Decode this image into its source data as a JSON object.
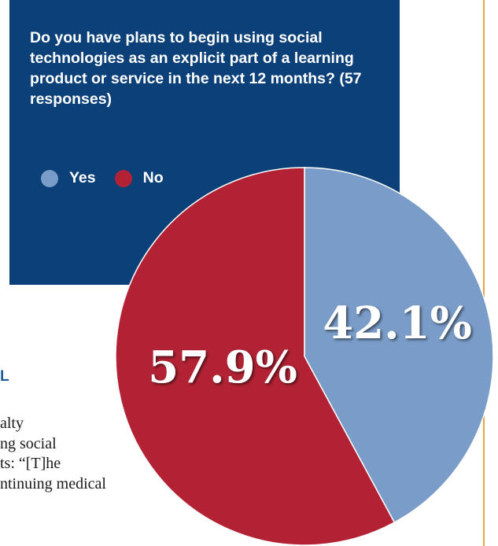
{
  "chart_data": {
    "type": "pie",
    "title": "Do you have plans to begin using social technologies as an explicit part of a learning product or service in the next 12 months? (57 responses)",
    "slices": [
      {
        "label": "Yes",
        "value": 42.1,
        "display": "42.1%",
        "color": "#7a9cc8"
      },
      {
        "label": "No",
        "value": 57.9,
        "display": "57.9%",
        "color": "#b22234"
      }
    ],
    "legend_placement": "top-left"
  },
  "legend": [
    "Yes",
    "No"
  ],
  "background_text": {
    "heading": "L",
    "lines": [
      "alty",
      "ng social",
      "ts: “[T]he",
      "ntinuing medical"
    ]
  },
  "colors": {
    "panel": "#0b4079",
    "rule": "#e9a441",
    "heading": "#1e5a99"
  }
}
